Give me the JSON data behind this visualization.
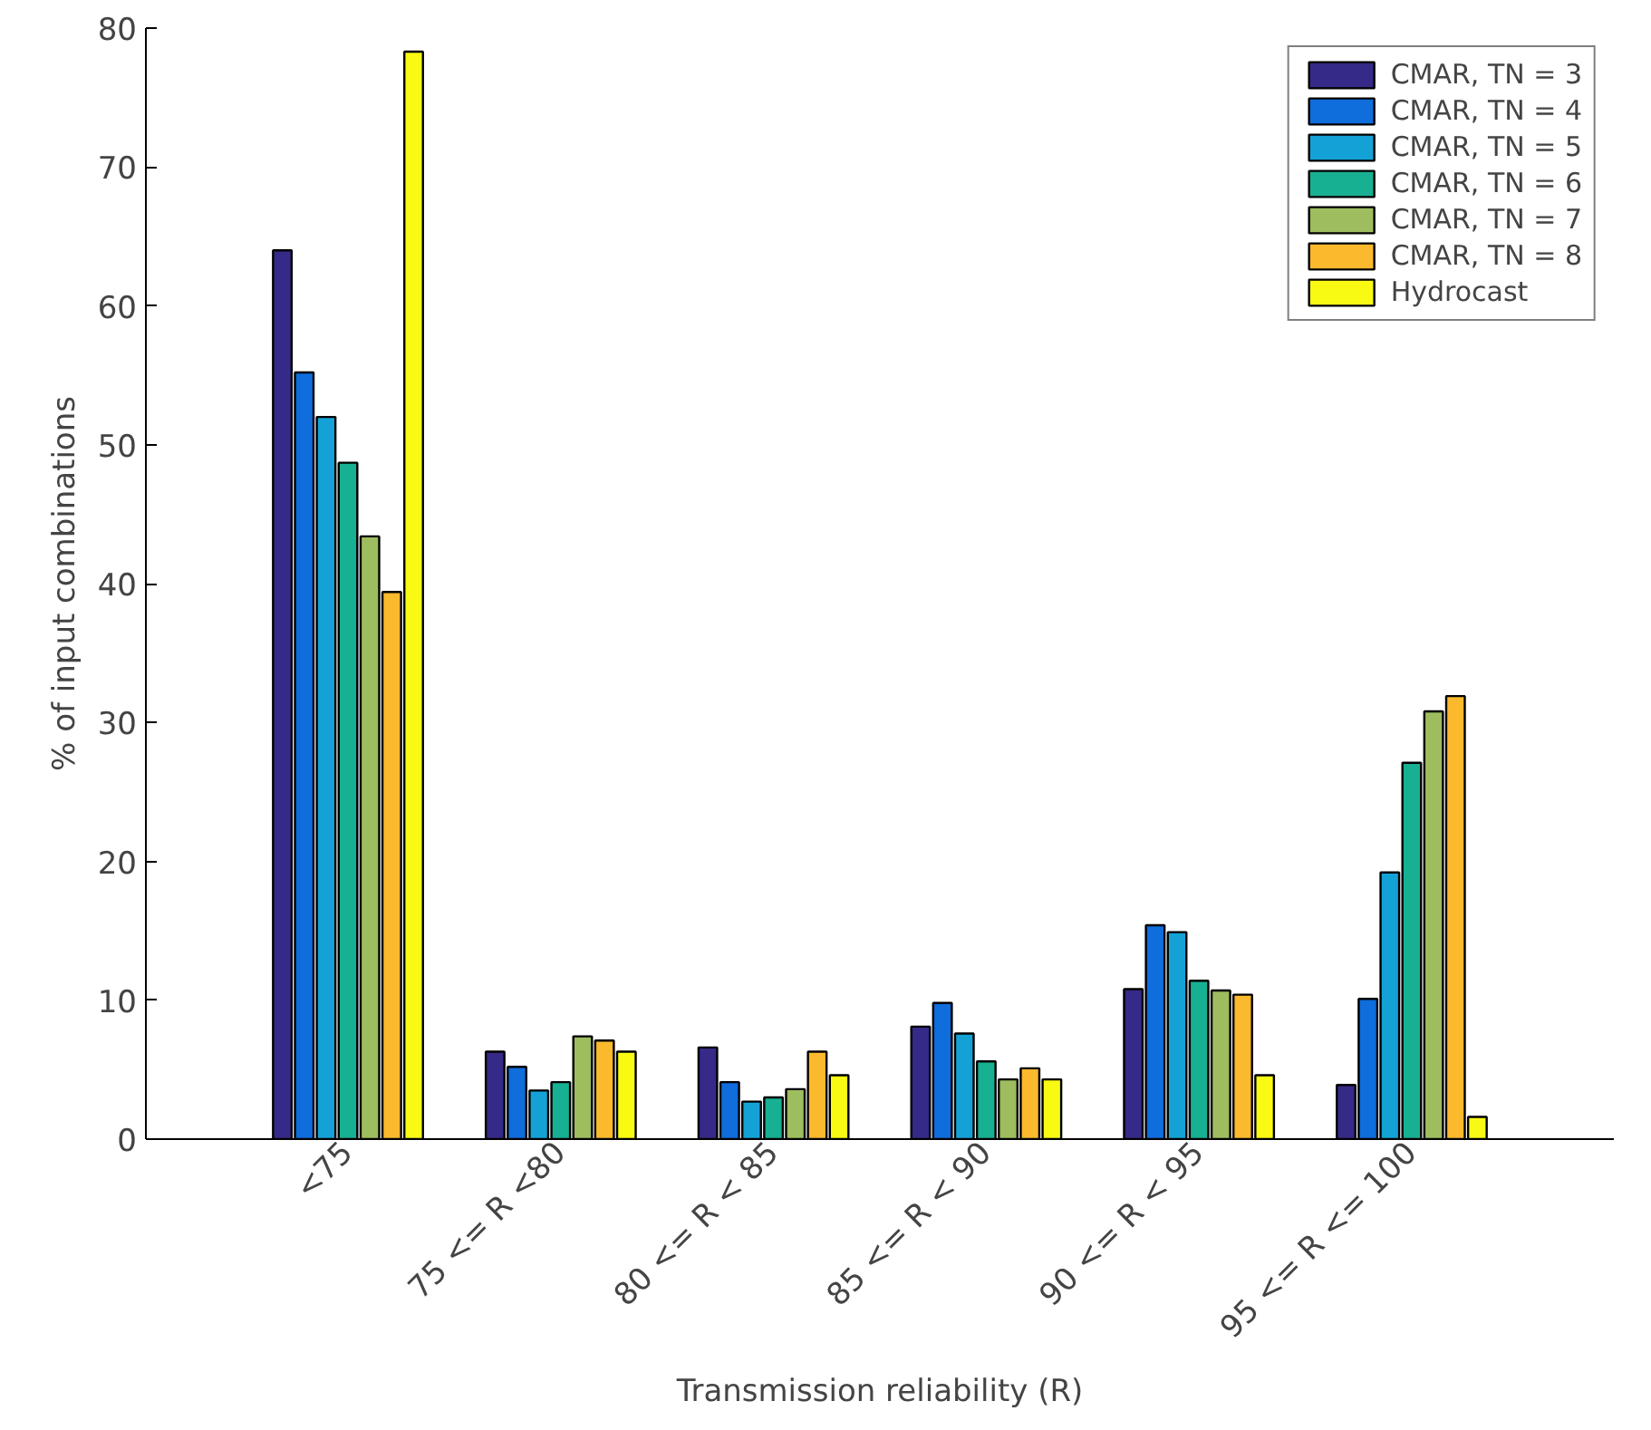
{
  "chart_data": {
    "type": "bar",
    "xlabel": "Transmission reliability (R)",
    "ylabel": "% of input combinations",
    "categories": [
      "<75",
      "75 <= R <80",
      "80 <= R < 85",
      "85 <= R < 90",
      "90 <= R < 95",
      "95 <= R <= 100"
    ],
    "series": [
      {
        "name": "CMAR, TN = 3",
        "color": "#352a87",
        "values": [
          64.0,
          6.3,
          6.6,
          8.1,
          10.8,
          3.9
        ]
      },
      {
        "name": "CMAR, TN = 4",
        "color": "#0f6ddc",
        "values": [
          55.2,
          5.2,
          4.1,
          9.8,
          15.4,
          10.1
        ]
      },
      {
        "name": "CMAR, TN = 5",
        "color": "#14a2d6",
        "values": [
          52.0,
          3.5,
          2.7,
          7.6,
          14.9,
          19.2
        ]
      },
      {
        "name": "CMAR, TN = 6",
        "color": "#18b092",
        "values": [
          48.7,
          4.1,
          3.0,
          5.6,
          11.4,
          27.1
        ]
      },
      {
        "name": "CMAR, TN = 7",
        "color": "#9dbd5f",
        "values": [
          43.4,
          7.4,
          3.6,
          4.3,
          10.7,
          30.8
        ]
      },
      {
        "name": "CMAR, TN = 8",
        "color": "#fbb92e",
        "values": [
          39.4,
          7.1,
          6.3,
          5.1,
          10.4,
          31.9
        ]
      },
      {
        "name": "Hydrocast",
        "color": "#f9fa14",
        "values": [
          78.3,
          6.3,
          4.6,
          4.3,
          4.6,
          1.6
        ]
      }
    ],
    "ylim": [
      0,
      80
    ],
    "yticks": [
      0,
      10,
      20,
      30,
      40,
      50,
      60,
      70,
      80
    ],
    "grid": false,
    "legend": "top right"
  }
}
